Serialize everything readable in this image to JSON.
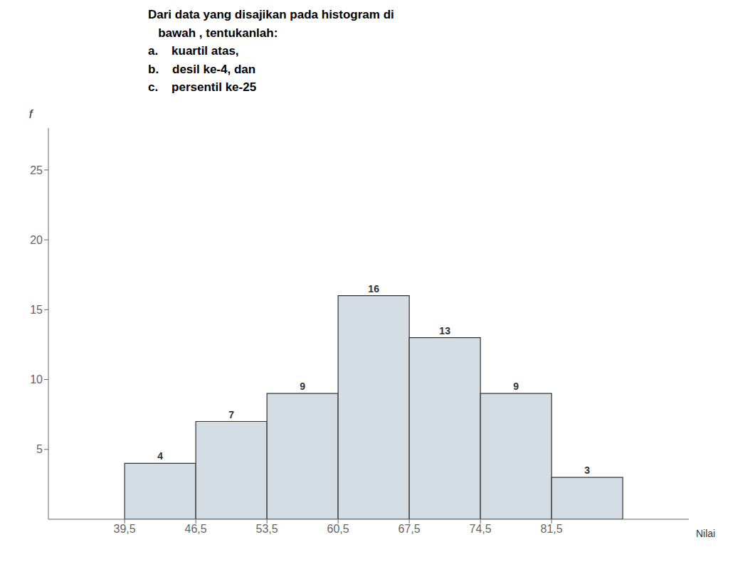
{
  "chart_data": {
    "type": "histogram",
    "title": "Dari data yang disajikan pada histogram di\n   bawah , tentukanlah:\na.    kuartil atas,\nb.    desil ke-4, dan\nc.    persentil ke-25",
    "bins": [
      39.5,
      46.5,
      53.5,
      60.5,
      67.5,
      74.5,
      81.5,
      88.5
    ],
    "values": [
      4,
      7,
      9,
      16,
      13,
      9,
      3
    ],
    "color": "#d4dce4",
    "xlabel": "Nilai",
    "ylabel": "f",
    "xlim": [
      32,
      95
    ],
    "xticks": [
      {
        "value": 39.5,
        "label": "39,5"
      },
      {
        "value": 46.5,
        "label": "46,5"
      },
      {
        "value": 53.5,
        "label": "53,5"
      },
      {
        "value": 60.5,
        "label": "60,5"
      },
      {
        "value": 67.5,
        "label": "67,5"
      },
      {
        "value": 74.5,
        "label": "74,5"
      },
      {
        "value": 81.5,
        "label": "81,5"
      }
    ],
    "ylim": [
      0,
      28
    ],
    "yticks": [
      5,
      10,
      15,
      20,
      25
    ],
    "grid": false,
    "data_labels": true
  }
}
